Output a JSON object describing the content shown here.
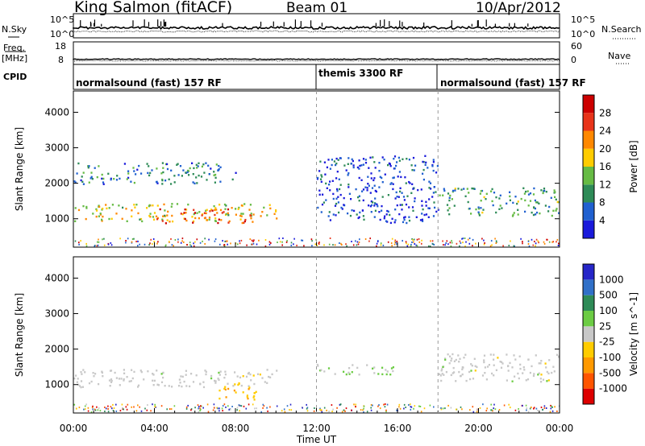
{
  "header": {
    "title": "King Salmon (fitACF)",
    "beam": "Beam 01",
    "date": "10/Apr/2012"
  },
  "strip_labels": {
    "nsky": "N.Sky",
    "nsky_ticks": [
      "10^5",
      "10^0"
    ],
    "nsearch": "N.Search",
    "nsearch_ticks": [
      "10^5",
      "10^0"
    ],
    "freq_label": "Freq.",
    "freq_units": "[MHz]",
    "freq_ticks": [
      "18",
      "8"
    ],
    "nave": "Nave",
    "nave_ticks": [
      "60",
      "0"
    ],
    "cpid": "CPID"
  },
  "modes": [
    {
      "name": "normalsound (fast) 157 RF",
      "start_hr": 0,
      "end_hr": 12
    },
    {
      "name": "themis 3300 RF",
      "start_hr": 12,
      "end_hr": 18
    },
    {
      "name": "normalsound (fast) 157 RF",
      "start_hr": 18,
      "end_hr": 24
    }
  ],
  "x_axis": {
    "label": "Time UT",
    "ticks": [
      "00:00",
      "04:00",
      "08:00",
      "12:00",
      "16:00",
      "20:00",
      "00:00"
    ]
  },
  "panels": {
    "power": {
      "ylabel": "Slant Range [km]",
      "yticks": [
        "1000",
        "2000",
        "3000",
        "4000"
      ],
      "colorbar_label": "Power [dB]",
      "colorbar_ticks": [
        "4",
        "8",
        "12",
        "16",
        "20",
        "24",
        "28"
      ],
      "colors": [
        "#1a1adb",
        "#2060d0",
        "#2e8b57",
        "#66bb44",
        "#ffcc00",
        "#ff8800",
        "#e8341a",
        "#cc0000"
      ]
    },
    "velocity": {
      "ylabel": "Slant Range [km]",
      "yticks": [
        "1000",
        "2000",
        "3000",
        "4000"
      ],
      "colorbar_label": "Velocity [m s^-1]",
      "colorbar_ticks": [
        "1000",
        "500",
        "100",
        "25",
        "-25",
        "-100",
        "-500",
        "-1000"
      ],
      "colors": [
        "#2626c8",
        "#3070c8",
        "#2e8b57",
        "#6ccc44",
        "#c8c8c8",
        "#ffcc00",
        "#ff9900",
        "#ff5500",
        "#dd0000"
      ]
    }
  },
  "chart_data": [
    {
      "type": "heatmap",
      "title": "Power",
      "xlabel": "Time UT",
      "ylabel": "Slant Range [km]",
      "xlim": [
        0,
        24
      ],
      "ylim": [
        200,
        4600
      ],
      "colorbar": {
        "label": "Power [dB]",
        "range": [
          0,
          30
        ]
      },
      "bands": [
        {
          "t_start": 0,
          "t_end": 10,
          "range_low": 950,
          "range_high": 1450,
          "power_db": 16
        },
        {
          "t_start": 4,
          "t_end": 9,
          "range_low": 900,
          "range_high": 1300,
          "power_db": 24
        },
        {
          "t_start": 0,
          "t_end": 8,
          "range_low": 2000,
          "range_high": 2600,
          "power_db": 8
        },
        {
          "t_start": 18,
          "t_end": 24,
          "range_low": 1100,
          "range_high": 1900,
          "power_db": 10
        },
        {
          "t_start": 12,
          "t_end": 18,
          "range_low": 900,
          "range_high": 2800,
          "power_db": 4
        }
      ]
    },
    {
      "type": "heatmap",
      "title": "Velocity",
      "xlabel": "Time UT",
      "ylabel": "Slant Range [km]",
      "xlim": [
        0,
        24
      ],
      "ylim": [
        200,
        4600
      ],
      "colorbar": {
        "label": "Velocity [m s^-1]",
        "range": [
          -1000,
          1000
        ]
      },
      "bands": [
        {
          "t_start": 0,
          "t_end": 10,
          "range_low": 950,
          "range_high": 1450,
          "velocity": 0
        },
        {
          "t_start": 7,
          "t_end": 9,
          "range_low": 600,
          "range_high": 1100,
          "velocity": -300
        },
        {
          "t_start": 12,
          "t_end": 16,
          "range_low": 1300,
          "range_high": 1600,
          "velocity": 100
        },
        {
          "t_start": 18,
          "t_end": 24,
          "range_low": 1100,
          "range_high": 1900,
          "velocity": 0
        }
      ]
    }
  ]
}
